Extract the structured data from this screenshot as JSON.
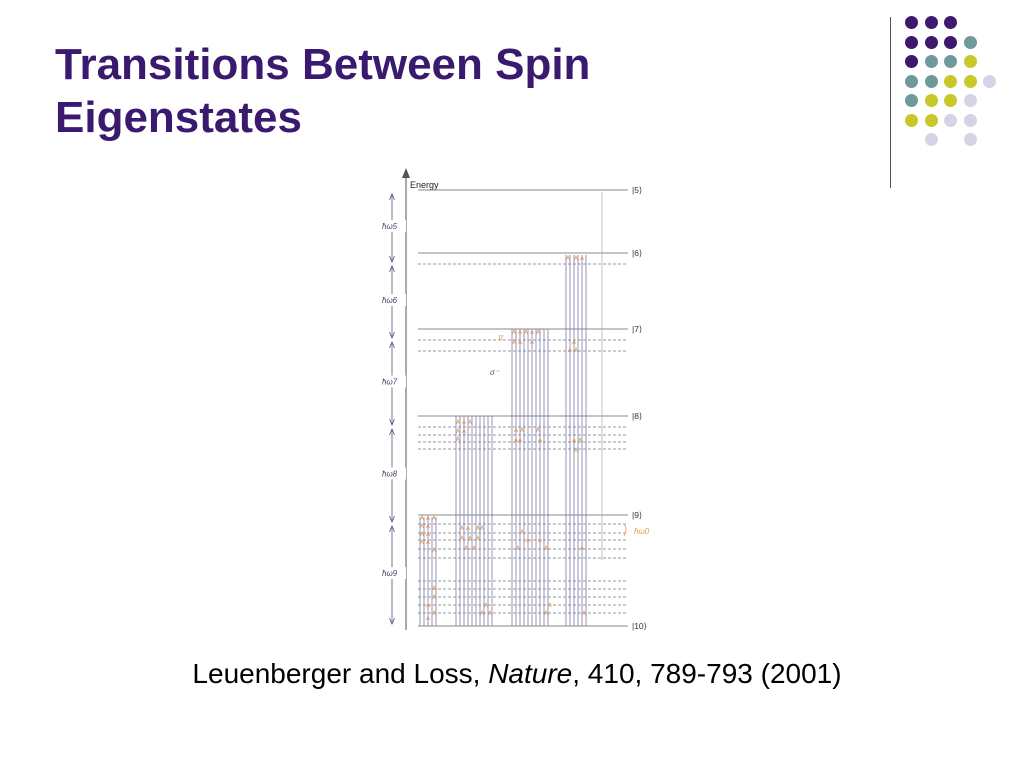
{
  "slide": {
    "title_line1": "Transitions Between Spin",
    "title_line2": "Eigenstates",
    "caption": {
      "authors": "Leuenberger and Loss, ",
      "journal": "Nature",
      "rest": ", 410, 789-793 (2001)"
    }
  },
  "theme": {
    "title_color": "#3a1a6e",
    "dot_purple": "#3d1a6e",
    "dot_teal": "#6f9a9c",
    "dot_yellow": "#c8c82a",
    "dot_lavender": "#d4d4e6"
  },
  "figure": {
    "energy_label": "Energy",
    "state_labels": [
      "|5⟩",
      "|6⟩",
      "|7⟩",
      "|8⟩",
      "|9⟩",
      "|10⟩"
    ],
    "gap_labels": [
      "ħω5",
      "ħω6",
      "ħω7",
      "ħω8",
      "ħω9"
    ],
    "side_label": "ħω0",
    "pi_label": "π",
    "sigma_label": "σ⁻",
    "line_color": "#7a7aa8",
    "orange_color": "#e89a55"
  }
}
